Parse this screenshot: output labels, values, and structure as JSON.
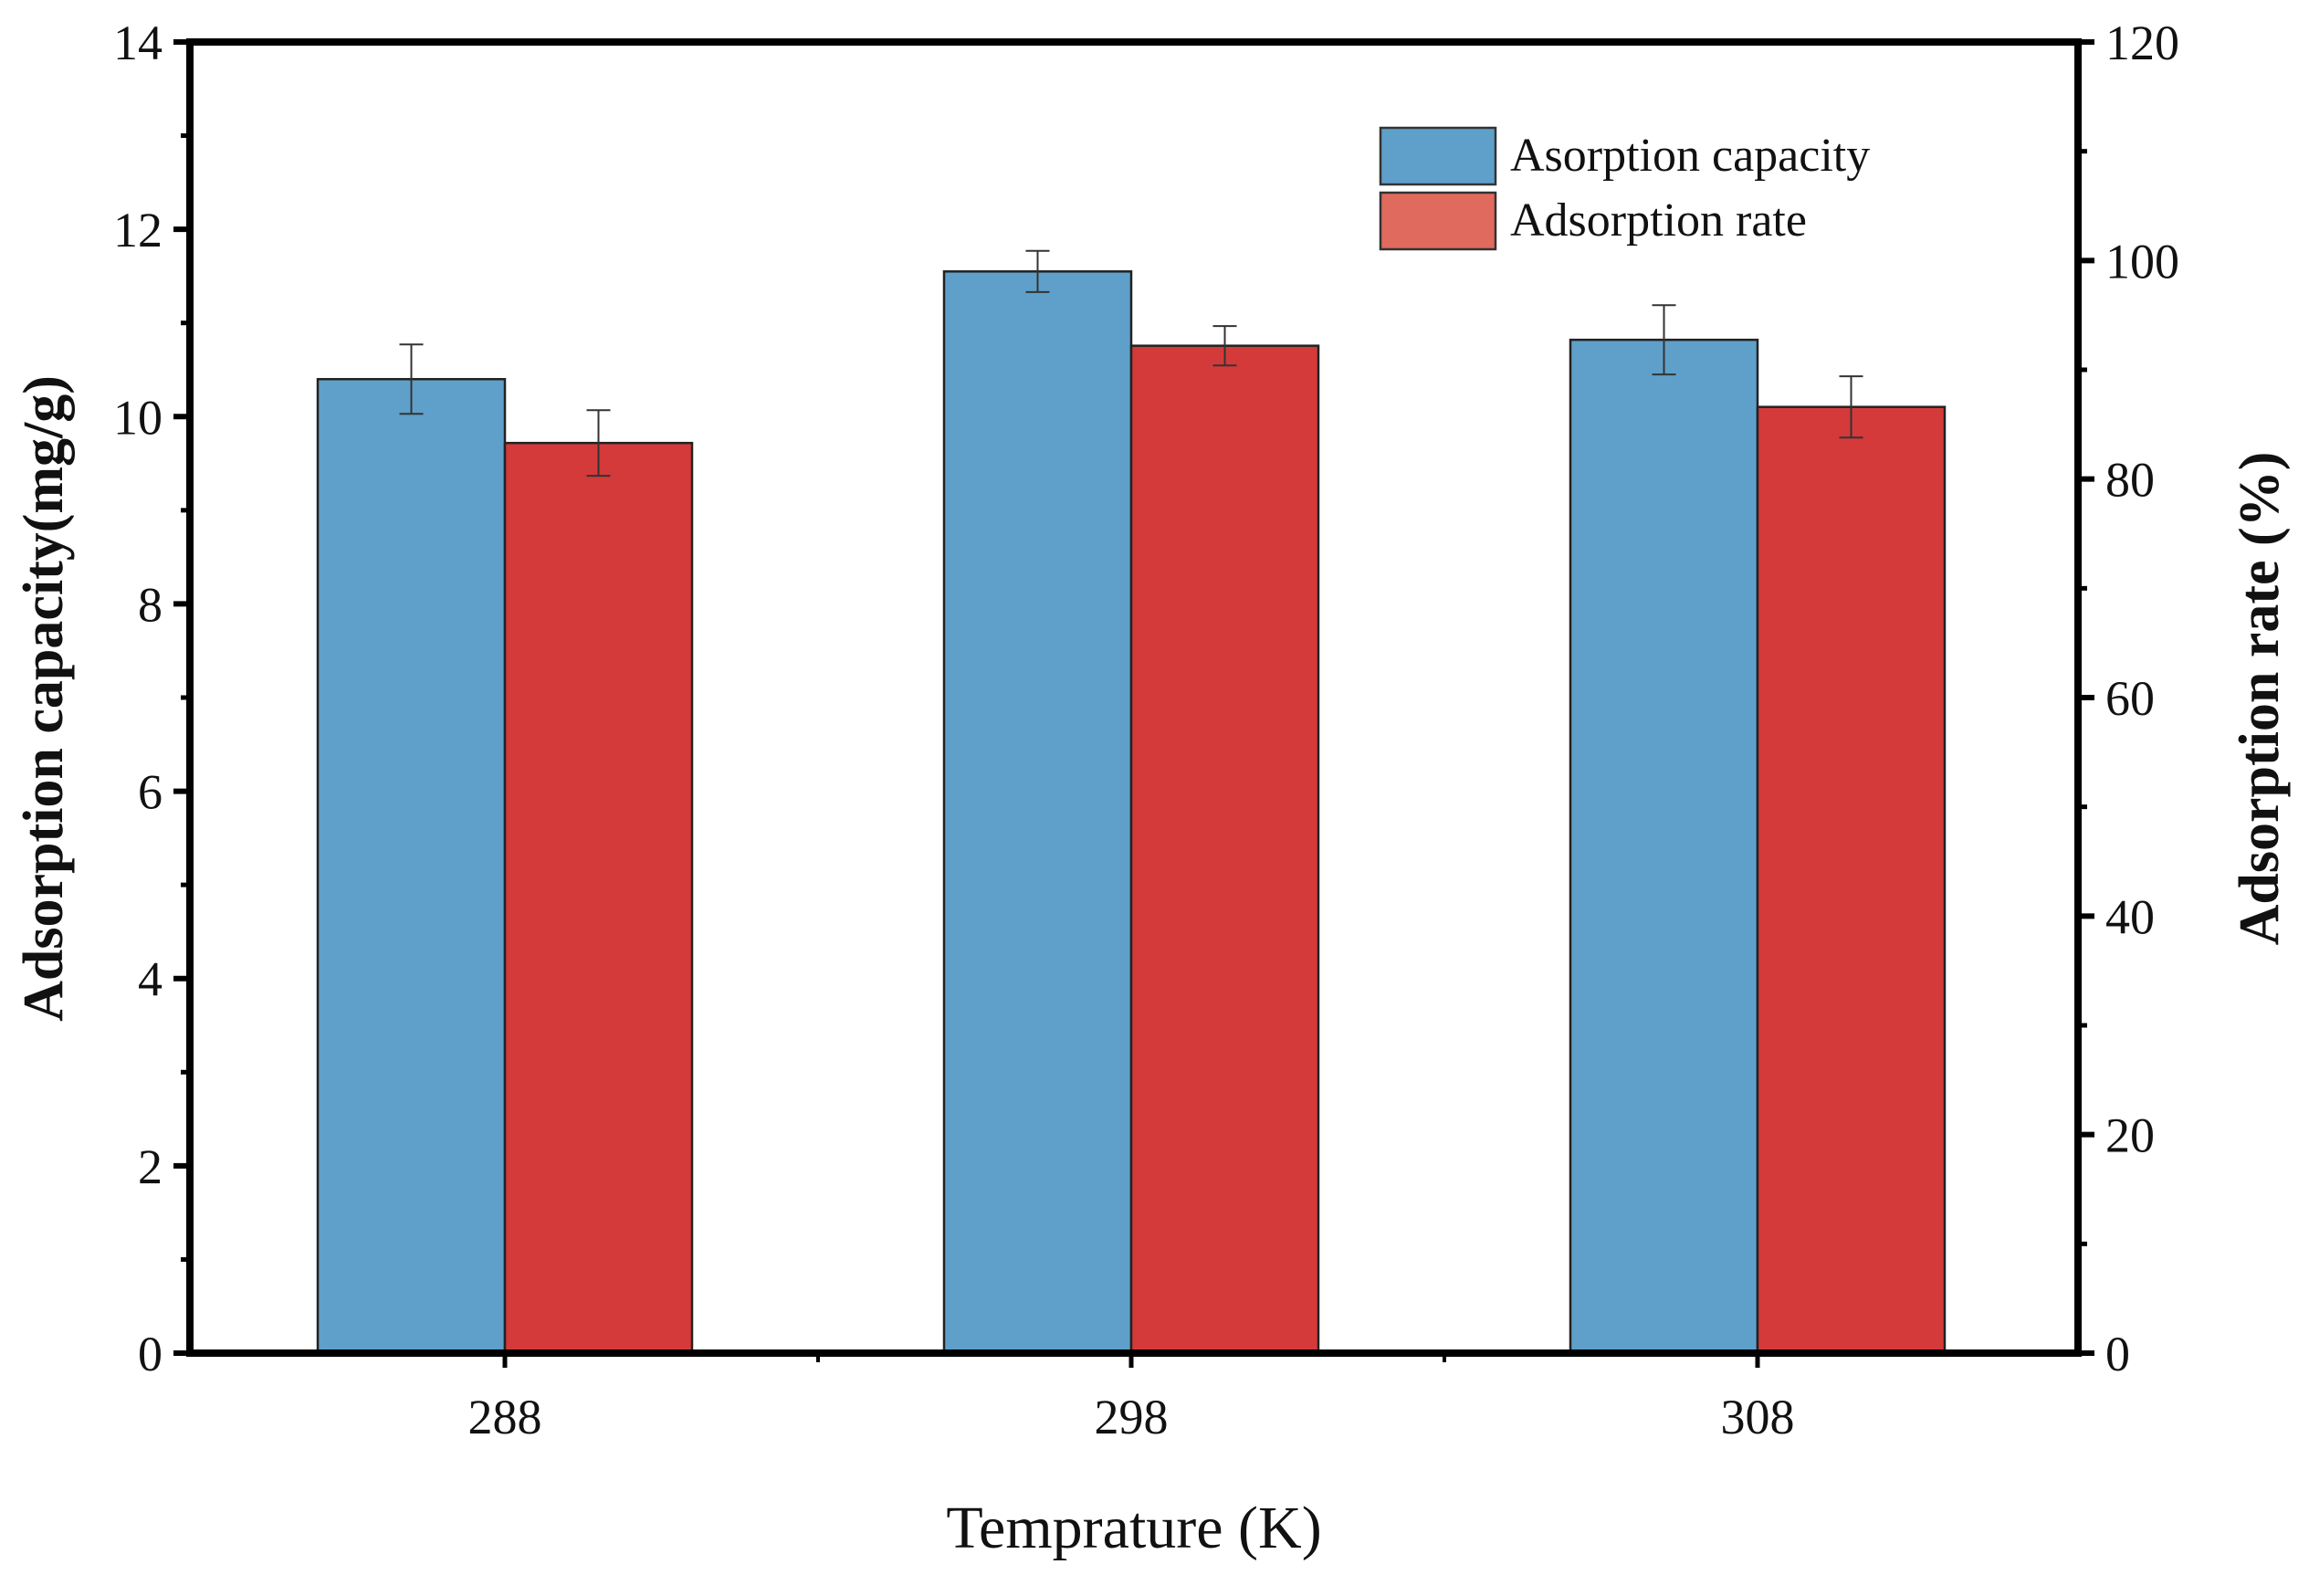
{
  "chart_data": {
    "type": "bar",
    "categories": [
      "288",
      "298",
      "308"
    ],
    "xlabel": "Temprature (K)",
    "ylabel": "Adsorption capacity(mg/g)",
    "y2label": "Adsorption rate (%)",
    "ylim": [
      0,
      14
    ],
    "y2lim": [
      0,
      120
    ],
    "yticks": [
      "0",
      "2",
      "4",
      "6",
      "8",
      "10",
      "12",
      "14"
    ],
    "y2ticks": [
      "0",
      "20",
      "40",
      "60",
      "80",
      "100",
      "120"
    ],
    "legend_position": "top-right",
    "grid": false,
    "series": [
      {
        "name": "Asorption capacity",
        "axis": "left",
        "color": "#5fa0ca",
        "values": [
          10.4,
          11.55,
          10.82
        ],
        "errors": [
          0.37,
          0.22,
          0.37
        ]
      },
      {
        "name": "Adsorption rate",
        "axis": "right",
        "color": "#d43a3a",
        "legend_color": "#e06a5e",
        "values": [
          83.3,
          92.2,
          86.6
        ],
        "errors": [
          3.0,
          1.8,
          2.8
        ]
      }
    ]
  }
}
